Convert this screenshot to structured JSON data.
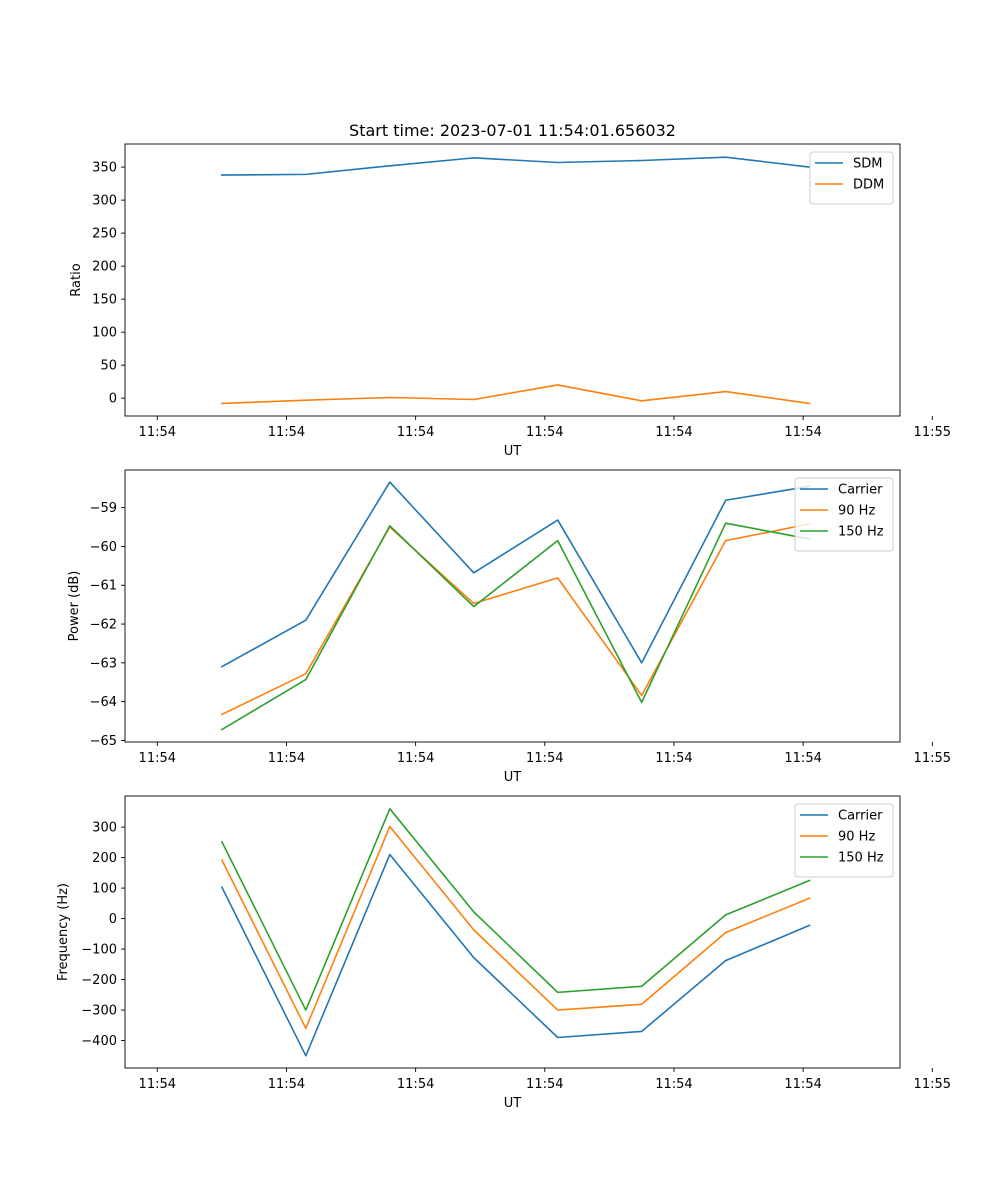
{
  "figure_title": "Start time: 2023-07-01 11:54:01.656032",
  "colors": {
    "blue": "#1f77b4",
    "orange": "#ff7f0e",
    "green": "#2ca02c"
  },
  "chart_data": [
    {
      "type": "line",
      "title": "Start time: 2023-07-01 11:54:01.656032",
      "xlabel": "UT",
      "ylabel": "Ratio",
      "xlim": [
        0,
        12
      ],
      "x_ticks": [
        0.5,
        2.5,
        4.5,
        6.5,
        8.5,
        10.5,
        12.5
      ],
      "x_tick_labels": [
        "11:54",
        "11:54",
        "11:54",
        "11:54",
        "11:54",
        "11:54",
        "11:55"
      ],
      "ylim": [
        -27,
        385
      ],
      "y_ticks": [
        0,
        50,
        100,
        150,
        200,
        250,
        300,
        350
      ],
      "y_tick_labels": [
        "0",
        "50",
        "100",
        "150",
        "200",
        "250",
        "300",
        "350"
      ],
      "legend": "upper right",
      "x": [
        1.5,
        2.8,
        4.1,
        5.4,
        6.7,
        8.0,
        9.3,
        10.6
      ],
      "series": [
        {
          "name": "SDM",
          "color": "#1f77b4",
          "values": [
            338,
            339,
            352,
            364,
            357,
            360,
            365,
            350
          ]
        },
        {
          "name": "DDM",
          "color": "#ff7f0e",
          "values": [
            -8,
            -3,
            1,
            -2,
            20,
            -4,
            10,
            -8
          ]
        }
      ]
    },
    {
      "type": "line",
      "xlabel": "UT",
      "ylabel": "Power (dB)",
      "xlim": [
        0,
        12
      ],
      "x_ticks": [
        0.5,
        2.5,
        4.5,
        6.5,
        8.5,
        10.5,
        12.5
      ],
      "x_tick_labels": [
        "11:54",
        "11:54",
        "11:54",
        "11:54",
        "11:54",
        "11:54",
        "11:55"
      ],
      "ylim": [
        -65.04,
        -58.03
      ],
      "y_ticks": [
        -65,
        -64,
        -63,
        -62,
        -61,
        -60,
        -59
      ],
      "y_tick_labels": [
        "−65",
        "−64",
        "−63",
        "−62",
        "−61",
        "−60",
        "−59"
      ],
      "legend": "upper right",
      "x": [
        1.5,
        2.8,
        4.1,
        5.4,
        6.7,
        8.0,
        9.3,
        10.6
      ],
      "series": [
        {
          "name": "Carrier",
          "color": "#1f77b4",
          "values": [
            -63.1,
            -61.9,
            -58.34,
            -60.68,
            -59.32,
            -63.0,
            -58.81,
            -58.45
          ]
        },
        {
          "name": "90 Hz",
          "color": "#ff7f0e",
          "values": [
            -64.33,
            -63.28,
            -59.5,
            -61.47,
            -60.81,
            -63.84,
            -59.85,
            -59.42
          ]
        },
        {
          "name": "150 Hz",
          "color": "#2ca02c",
          "values": [
            -64.72,
            -63.43,
            -59.47,
            -61.55,
            -59.85,
            -64.02,
            -59.4,
            -59.81
          ]
        }
      ]
    },
    {
      "type": "line",
      "xlabel": "UT",
      "ylabel": "Frequency (Hz)",
      "xlim": [
        0,
        12
      ],
      "x_ticks": [
        0.5,
        2.5,
        4.5,
        6.5,
        8.5,
        10.5,
        12.5
      ],
      "x_tick_labels": [
        "11:54",
        "11:54",
        "11:54",
        "11:54",
        "11:54",
        "11:54",
        "11:55"
      ],
      "ylim": [
        -490,
        402
      ],
      "y_ticks": [
        -400,
        -300,
        -200,
        -100,
        0,
        100,
        200,
        300
      ],
      "y_tick_labels": [
        "−400",
        "−300",
        "−200",
        "−100",
        "0",
        "100",
        "200",
        "300"
      ],
      "legend": "upper right",
      "x": [
        1.5,
        2.8,
        4.1,
        5.4,
        6.7,
        8.0,
        9.3,
        10.6
      ],
      "series": [
        {
          "name": "Carrier",
          "color": "#1f77b4",
          "values": [
            103,
            -450,
            210,
            -128,
            -390,
            -370,
            -138,
            -22
          ]
        },
        {
          "name": "90 Hz",
          "color": "#ff7f0e",
          "values": [
            192,
            -360,
            302,
            -37,
            -300,
            -281,
            -46,
            67
          ]
        },
        {
          "name": "150 Hz",
          "color": "#2ca02c",
          "values": [
            252,
            -300,
            360,
            22,
            -242,
            -222,
            12,
            125
          ]
        }
      ]
    }
  ]
}
